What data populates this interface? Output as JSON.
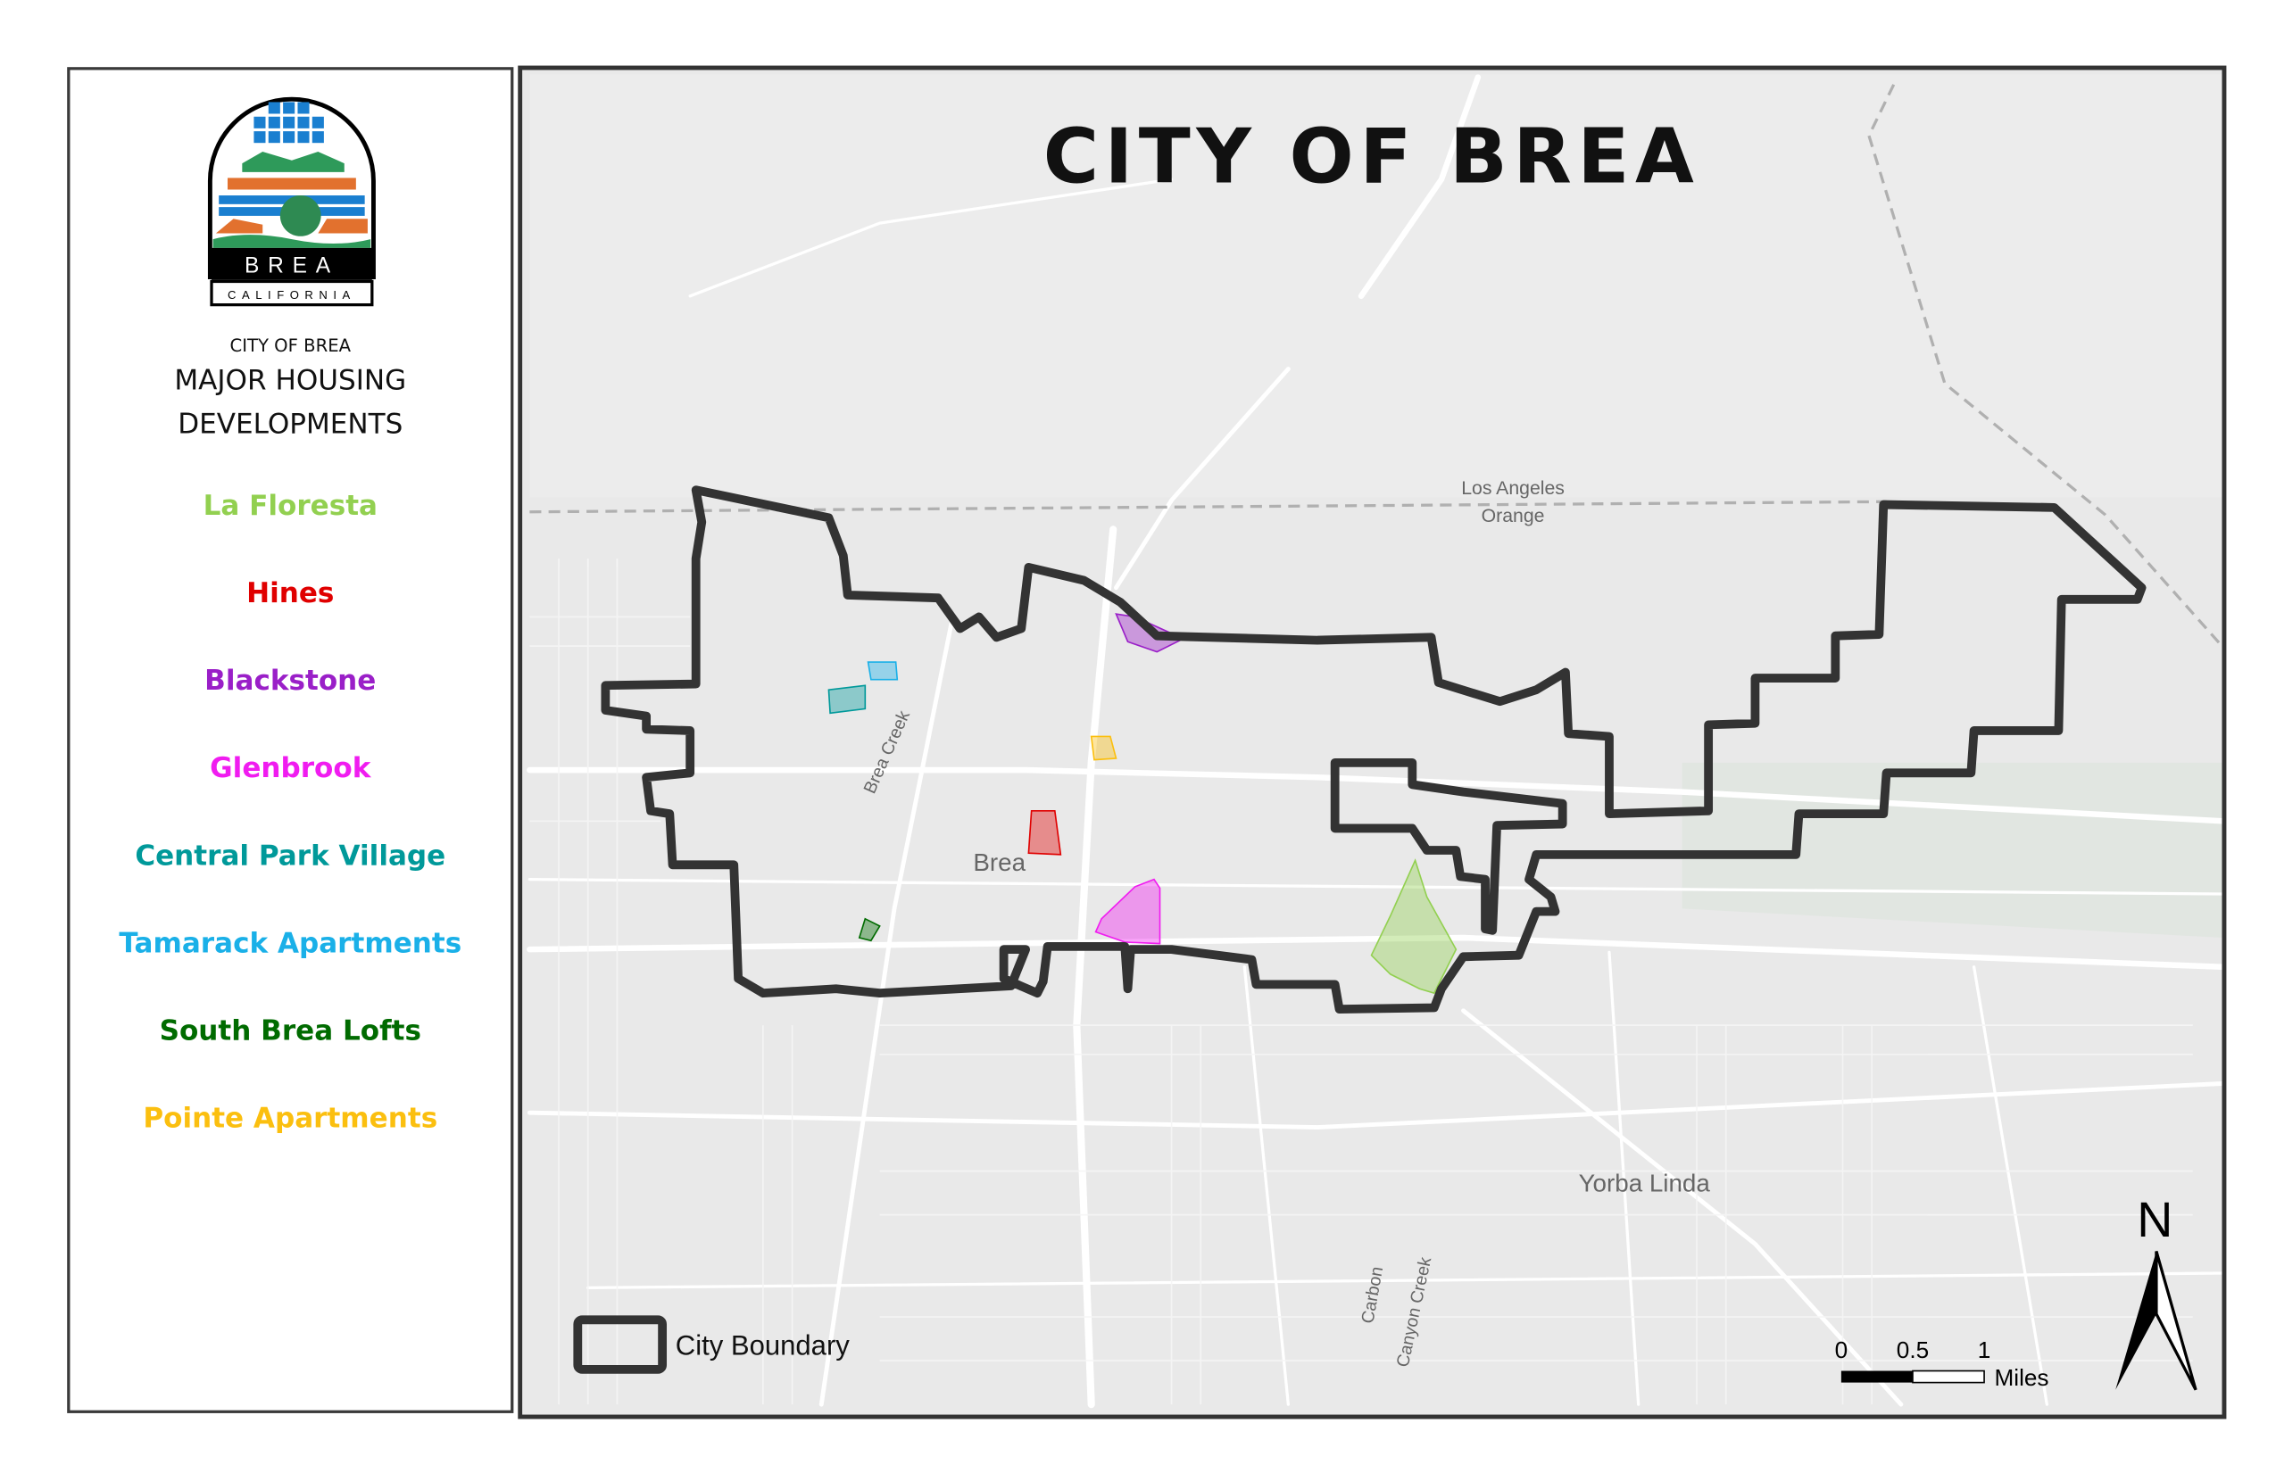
{
  "map": {
    "title": "CITY OF BREA",
    "labels": {
      "la_county": "Los Angeles",
      "orange_county": "Orange",
      "brea": "Brea",
      "brea_creek": "Brea Creek",
      "yorba_linda": "Yorba Linda",
      "carbon": "Carbon",
      "canyon_creek": "Canyon Creek"
    },
    "boundary_color": "#333333",
    "boundary_legend": "City Boundary",
    "scale_bar": {
      "ticks": [
        "0",
        "0.5",
        "1"
      ],
      "unit": "Miles"
    },
    "north_arrow": {
      "label": "N",
      "icon": "north-arrow-icon"
    }
  },
  "panel": {
    "logo": {
      "word": "BREA",
      "state": "CALIFORNIA"
    },
    "kicker": "CITY OF BREA",
    "heading_line1": "MAJOR HOUSING",
    "heading_line2": "DEVELOPMENTS",
    "developments": [
      {
        "name": "La Floresta",
        "color": "#92d050"
      },
      {
        "name": "Hines",
        "color": "#e00000"
      },
      {
        "name": "Blackstone",
        "color": "#9a1fc8"
      },
      {
        "name": "Glenbrook",
        "color": "#f01cf0"
      },
      {
        "name": "Central Park Village",
        "color": "#00999a"
      },
      {
        "name": "Tamarack Apartments",
        "color": "#1ab0e8"
      },
      {
        "name": "South Brea Lofts",
        "color": "#006b00"
      },
      {
        "name": "Pointe Apartments",
        "color": "#fbbf0f"
      }
    ]
  }
}
